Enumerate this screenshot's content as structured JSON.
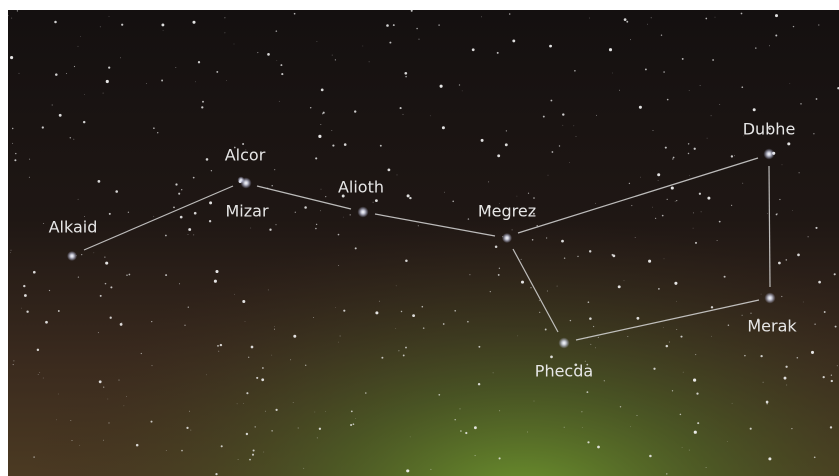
{
  "stars": [
    "Alkaid",
    "Alcor",
    "Mizar",
    "Alioth",
    "Megrez",
    "Dubhe",
    "Merak",
    "Phecda"
  ]
}
